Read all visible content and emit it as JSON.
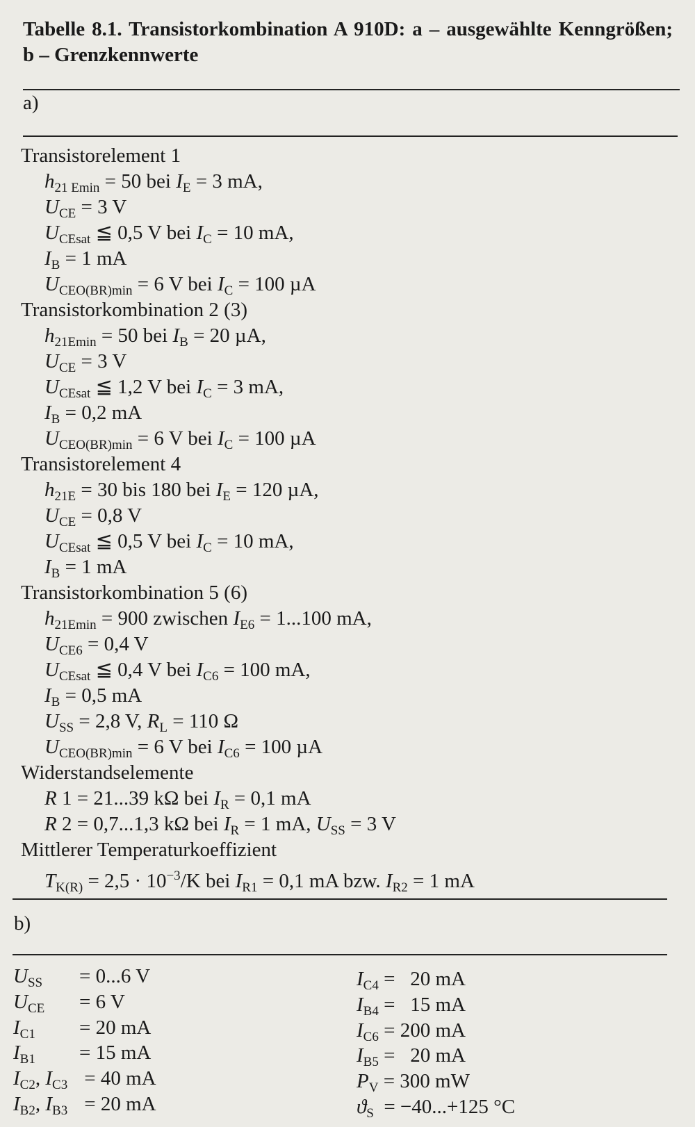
{
  "title": "Tabelle 8.1.  Transistorkombination A 910D: a – ausgewählte Kenngrößen; b – Grenzkennwerte",
  "a": {
    "label": "a)",
    "lines": [
      {
        "type": "hdr",
        "parts": [
          [
            "Transistorelement 1",
            ""
          ]
        ]
      },
      {
        "type": "item",
        "parts": [
          [
            "h",
            "i"
          ],
          [
            "21 Emin",
            "s"
          ],
          [
            " = 50 bei ",
            ""
          ],
          [
            "I",
            "i"
          ],
          [
            "E",
            "s"
          ],
          [
            " = 3 mA,",
            ""
          ]
        ]
      },
      {
        "type": "item",
        "parts": [
          [
            "U",
            "i"
          ],
          [
            "CE",
            "s"
          ],
          [
            " = 3 V",
            ""
          ]
        ]
      },
      {
        "type": "item",
        "parts": [
          [
            "U",
            "i"
          ],
          [
            "CEsat",
            "s"
          ],
          [
            " ≦ 0,5 V bei ",
            ""
          ],
          [
            "I",
            "i"
          ],
          [
            "C",
            "s"
          ],
          [
            " = 10 mA,",
            ""
          ]
        ]
      },
      {
        "type": "item",
        "parts": [
          [
            "I",
            "i"
          ],
          [
            "B",
            "s"
          ],
          [
            " = 1 mA",
            ""
          ]
        ]
      },
      {
        "type": "item",
        "parts": [
          [
            "U",
            "i"
          ],
          [
            "CEO(BR)min",
            "s"
          ],
          [
            " = 6 V bei ",
            ""
          ],
          [
            "I",
            "i"
          ],
          [
            "C",
            "s"
          ],
          [
            " = 100 µA",
            ""
          ]
        ]
      },
      {
        "type": "hdr",
        "parts": [
          [
            "Transistorkombination 2 (3)",
            ""
          ]
        ]
      },
      {
        "type": "item",
        "parts": [
          [
            "h",
            "i"
          ],
          [
            "21Emin",
            "s"
          ],
          [
            " = 50 bei ",
            ""
          ],
          [
            "I",
            "i"
          ],
          [
            "B",
            "s"
          ],
          [
            " = 20 µA,",
            ""
          ]
        ]
      },
      {
        "type": "item",
        "parts": [
          [
            "U",
            "i"
          ],
          [
            "CE",
            "s"
          ],
          [
            " = 3 V",
            ""
          ]
        ]
      },
      {
        "type": "item",
        "parts": [
          [
            "U",
            "i"
          ],
          [
            "CEsat",
            "s"
          ],
          [
            " ≦ 1,2 V bei ",
            ""
          ],
          [
            "I",
            "i"
          ],
          [
            "C",
            "s"
          ],
          [
            " = 3 mA,",
            ""
          ]
        ]
      },
      {
        "type": "item",
        "parts": [
          [
            "I",
            "i"
          ],
          [
            "B",
            "s"
          ],
          [
            " = 0,2 mA",
            ""
          ]
        ]
      },
      {
        "type": "item",
        "parts": [
          [
            "U",
            "i"
          ],
          [
            "CEO(BR)min",
            "s"
          ],
          [
            " = 6 V bei ",
            ""
          ],
          [
            "I",
            "i"
          ],
          [
            "C",
            "s"
          ],
          [
            " = 100 µA",
            ""
          ]
        ]
      },
      {
        "type": "hdr",
        "parts": [
          [
            "Transistorelement 4",
            ""
          ]
        ]
      },
      {
        "type": "item",
        "parts": [
          [
            "h",
            "i"
          ],
          [
            "21E",
            "s"
          ],
          [
            " = 30 bis 180 bei ",
            ""
          ],
          [
            "I",
            "i"
          ],
          [
            "E",
            "s"
          ],
          [
            " = 120 µA,",
            ""
          ]
        ]
      },
      {
        "type": "item",
        "parts": [
          [
            "U",
            "i"
          ],
          [
            "CE",
            "s"
          ],
          [
            " = 0,8 V",
            ""
          ]
        ]
      },
      {
        "type": "item",
        "parts": [
          [
            "U",
            "i"
          ],
          [
            "CEsat",
            "s"
          ],
          [
            " ≦ 0,5 V bei ",
            ""
          ],
          [
            "I",
            "i"
          ],
          [
            "C",
            "s"
          ],
          [
            " = 10 mA,",
            ""
          ]
        ]
      },
      {
        "type": "item",
        "parts": [
          [
            "I",
            "i"
          ],
          [
            "B",
            "s"
          ],
          [
            " = 1 mA",
            ""
          ]
        ]
      },
      {
        "type": "hdr",
        "parts": [
          [
            "Transistorkombination 5 (6)",
            ""
          ]
        ]
      },
      {
        "type": "item",
        "parts": [
          [
            "h",
            "i"
          ],
          [
            "21Emin",
            "s"
          ],
          [
            " = 900 zwischen ",
            ""
          ],
          [
            "I",
            "i"
          ],
          [
            "E6",
            "s"
          ],
          [
            " = 1...100 mA,",
            ""
          ]
        ]
      },
      {
        "type": "item",
        "parts": [
          [
            "U",
            "i"
          ],
          [
            "CE6",
            "s"
          ],
          [
            " = 0,4 V",
            ""
          ]
        ]
      },
      {
        "type": "item",
        "parts": [
          [
            "U",
            "i"
          ],
          [
            "CEsat",
            "s"
          ],
          [
            " ≦ 0,4 V bei ",
            ""
          ],
          [
            "I",
            "i"
          ],
          [
            "C6",
            "s"
          ],
          [
            " = 100 mA,",
            ""
          ]
        ]
      },
      {
        "type": "item",
        "parts": [
          [
            "I",
            "i"
          ],
          [
            "B",
            "s"
          ],
          [
            " = 0,5 mA",
            ""
          ]
        ]
      },
      {
        "type": "item",
        "parts": [
          [
            "U",
            "i"
          ],
          [
            "SS",
            "s"
          ],
          [
            " = 2,8 V, ",
            ""
          ],
          [
            "R",
            "i"
          ],
          [
            "L",
            "s"
          ],
          [
            " = 110 Ω",
            ""
          ]
        ]
      },
      {
        "type": "item",
        "parts": [
          [
            "U",
            "i"
          ],
          [
            "CEO(BR)min",
            "s"
          ],
          [
            " = 6 V bei ",
            ""
          ],
          [
            "I",
            "i"
          ],
          [
            "C6",
            "s"
          ],
          [
            " = 100 µA",
            ""
          ]
        ]
      },
      {
        "type": "hdr",
        "parts": [
          [
            "Widerstandselemente",
            ""
          ]
        ]
      },
      {
        "type": "item",
        "parts": [
          [
            "R",
            "i"
          ],
          [
            " 1 = 21...39 kΩ bei ",
            ""
          ],
          [
            "I",
            "i"
          ],
          [
            "R",
            "s"
          ],
          [
            " = 0,1 mA",
            ""
          ]
        ]
      },
      {
        "type": "item",
        "parts": [
          [
            "R",
            "i"
          ],
          [
            " 2 = 0,7...1,3 kΩ bei ",
            ""
          ],
          [
            "I",
            "i"
          ],
          [
            "R",
            "s"
          ],
          [
            " = 1 mA, ",
            ""
          ],
          [
            "U",
            "i"
          ],
          [
            "SS",
            "s"
          ],
          [
            " = 3 V",
            ""
          ]
        ]
      },
      {
        "type": "hdr",
        "parts": [
          [
            "Mittlerer Temperaturkoeffizient",
            ""
          ]
        ]
      },
      {
        "type": "item",
        "parts": [
          [
            "T",
            "i"
          ],
          [
            "K(R)",
            "s"
          ],
          [
            " = 2,5 · 10",
            ""
          ],
          [
            "−3",
            "p"
          ],
          [
            "/K bei ",
            ""
          ],
          [
            "I",
            "i"
          ],
          [
            "R1",
            "s"
          ],
          [
            " = 0,1 mA bzw. ",
            ""
          ],
          [
            "I",
            "i"
          ],
          [
            "R2",
            "s"
          ],
          [
            " = 1 mA",
            ""
          ]
        ]
      }
    ]
  },
  "b": {
    "label": "b)",
    "left": [
      {
        "sym": [
          [
            "U",
            "i"
          ],
          [
            "SS",
            "s"
          ]
        ],
        "val": "= 0...6 V"
      },
      {
        "sym": [
          [
            "U",
            "i"
          ],
          [
            "CE",
            "s"
          ]
        ],
        "val": "= 6 V"
      },
      {
        "sym": [
          [
            "I",
            "i"
          ],
          [
            "C1",
            "s"
          ]
        ],
        "val": "= 20 mA"
      },
      {
        "sym": [
          [
            "I",
            "i"
          ],
          [
            "B1",
            "s"
          ]
        ],
        "val": "= 15 mA"
      },
      {
        "sym": [
          [
            "I",
            "i"
          ],
          [
            "C2",
            "s"
          ],
          [
            ", ",
            ""
          ],
          [
            "I",
            "i"
          ],
          [
            "C3",
            "s"
          ]
        ],
        "val": " = 40 mA"
      },
      {
        "sym": [
          [
            "I",
            "i"
          ],
          [
            "B2",
            "s"
          ],
          [
            ", ",
            ""
          ],
          [
            "I",
            "i"
          ],
          [
            "B3",
            "s"
          ]
        ],
        "val": " = 20 mA"
      }
    ],
    "right": [
      {
        "sym": [
          [
            "I",
            "i"
          ],
          [
            "C4",
            "s"
          ]
        ],
        "val": " =   20 mA"
      },
      {
        "sym": [
          [
            "I",
            "i"
          ],
          [
            "B4",
            "s"
          ]
        ],
        "val": " =   15 mA"
      },
      {
        "sym": [
          [
            "I",
            "i"
          ],
          [
            "C6",
            "s"
          ]
        ],
        "val": " = 200 mA"
      },
      {
        "sym": [
          [
            "I",
            "i"
          ],
          [
            "B5",
            "s"
          ]
        ],
        "val": " =   20 mA"
      },
      {
        "sym": [
          [
            "P",
            "i"
          ],
          [
            "V",
            "s"
          ]
        ],
        "val": " = 300 mW"
      },
      {
        "sym": [
          [
            "ϑ",
            "i"
          ],
          [
            "S",
            "s"
          ]
        ],
        "val": "  = −40...+125 °C"
      }
    ]
  }
}
